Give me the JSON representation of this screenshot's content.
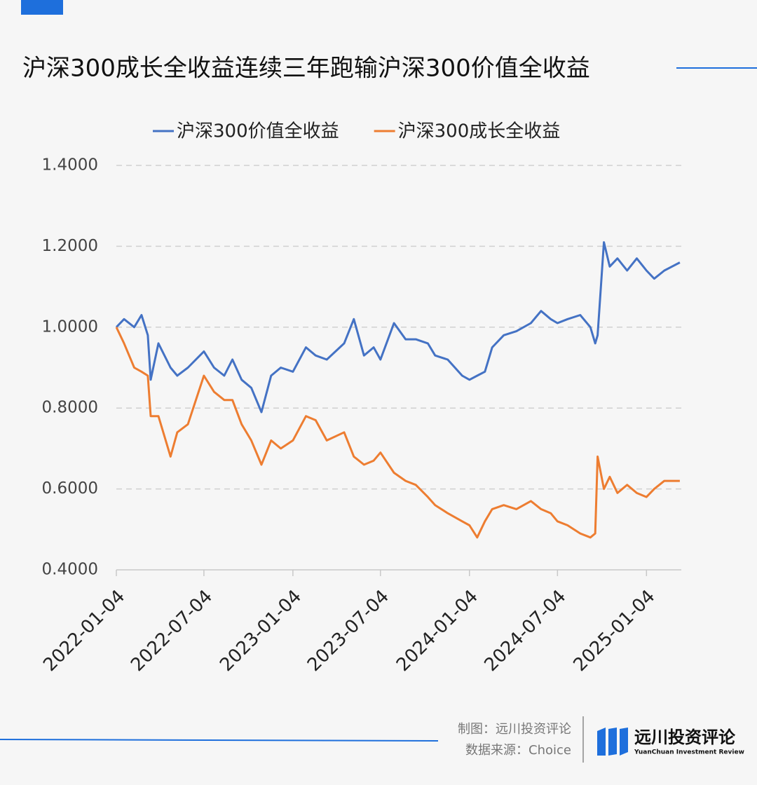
{
  "chart_data": {
    "type": "line",
    "title": "沪深300成长全收益连续三年跑输沪深300价值全收益",
    "x": [
      "2022-01-04",
      "2022-01-20",
      "2022-02-10",
      "2022-02-25",
      "2022-03-10",
      "2022-03-16",
      "2022-04-01",
      "2022-04-26",
      "2022-05-10",
      "2022-06-01",
      "2022-07-04",
      "2022-07-25",
      "2022-08-15",
      "2022-09-01",
      "2022-09-20",
      "2022-10-10",
      "2022-10-31",
      "2022-11-20",
      "2022-12-10",
      "2023-01-04",
      "2023-01-31",
      "2023-02-20",
      "2023-03-15",
      "2023-04-20",
      "2023-05-10",
      "2023-05-31",
      "2023-06-20",
      "2023-07-04",
      "2023-08-01",
      "2023-08-25",
      "2023-09-15",
      "2023-10-10",
      "2023-10-25",
      "2023-11-20",
      "2023-12-20",
      "2024-01-04",
      "2024-01-20",
      "2024-02-05",
      "2024-02-20",
      "2024-03-15",
      "2024-04-10",
      "2024-05-10",
      "2024-05-31",
      "2024-06-20",
      "2024-07-04",
      "2024-07-25",
      "2024-08-20",
      "2024-09-10",
      "2024-09-20",
      "2024-09-25",
      "2024-10-08",
      "2024-10-20",
      "2024-11-05",
      "2024-11-25",
      "2024-12-15",
      "2025-01-04",
      "2025-01-20",
      "2025-02-10",
      "2025-03-14"
    ],
    "series": [
      {
        "name": "沪深300价值全收益",
        "color": "#4472c4",
        "values": [
          1.0,
          1.02,
          1.0,
          1.03,
          0.98,
          0.87,
          0.96,
          0.9,
          0.88,
          0.9,
          0.94,
          0.9,
          0.88,
          0.92,
          0.87,
          0.85,
          0.79,
          0.88,
          0.9,
          0.89,
          0.95,
          0.93,
          0.92,
          0.96,
          1.02,
          0.93,
          0.95,
          0.92,
          1.01,
          0.97,
          0.97,
          0.96,
          0.93,
          0.92,
          0.88,
          0.87,
          0.88,
          0.89,
          0.95,
          0.98,
          0.99,
          1.01,
          1.04,
          1.02,
          1.01,
          1.02,
          1.03,
          1.0,
          0.96,
          0.98,
          1.21,
          1.15,
          1.17,
          1.14,
          1.17,
          1.14,
          1.12,
          1.14,
          1.16
        ]
      },
      {
        "name": "沪深300成长全收益",
        "color": "#ed7d31",
        "values": [
          1.0,
          0.96,
          0.9,
          0.89,
          0.88,
          0.78,
          0.78,
          0.68,
          0.74,
          0.76,
          0.88,
          0.84,
          0.82,
          0.82,
          0.76,
          0.72,
          0.66,
          0.72,
          0.7,
          0.72,
          0.78,
          0.77,
          0.72,
          0.74,
          0.68,
          0.66,
          0.67,
          0.69,
          0.64,
          0.62,
          0.61,
          0.58,
          0.56,
          0.54,
          0.52,
          0.51,
          0.48,
          0.52,
          0.55,
          0.56,
          0.55,
          0.57,
          0.55,
          0.54,
          0.52,
          0.51,
          0.49,
          0.48,
          0.49,
          0.68,
          0.6,
          0.63,
          0.59,
          0.61,
          0.59,
          0.58,
          0.6,
          0.62,
          0.62
        ]
      }
    ],
    "xlim": [
      "2022-01-04",
      "2025-03-17"
    ],
    "xticks": [
      "2022-01-04",
      "2022-07-04",
      "2023-01-04",
      "2023-07-04",
      "2024-01-04",
      "2024-07-04",
      "2025-01-04"
    ],
    "ylim": [
      0.4,
      1.4
    ],
    "yticks": [
      {
        "value": 0.4,
        "label": "0.4000"
      },
      {
        "value": 0.6,
        "label": "0.6000"
      },
      {
        "value": 0.8,
        "label": "0.8000"
      },
      {
        "value": 1.0,
        "label": "1.0000"
      },
      {
        "value": 1.2,
        "label": "1.2000"
      },
      {
        "value": 1.4,
        "label": "1.4000"
      }
    ],
    "grid": true,
    "legend": "top"
  },
  "footer": {
    "maker": "制图：远川投资评论",
    "source": "数据来源：Choice",
    "logo": "远川投资评论",
    "logo_en": "YuanChuan Investment Review"
  }
}
